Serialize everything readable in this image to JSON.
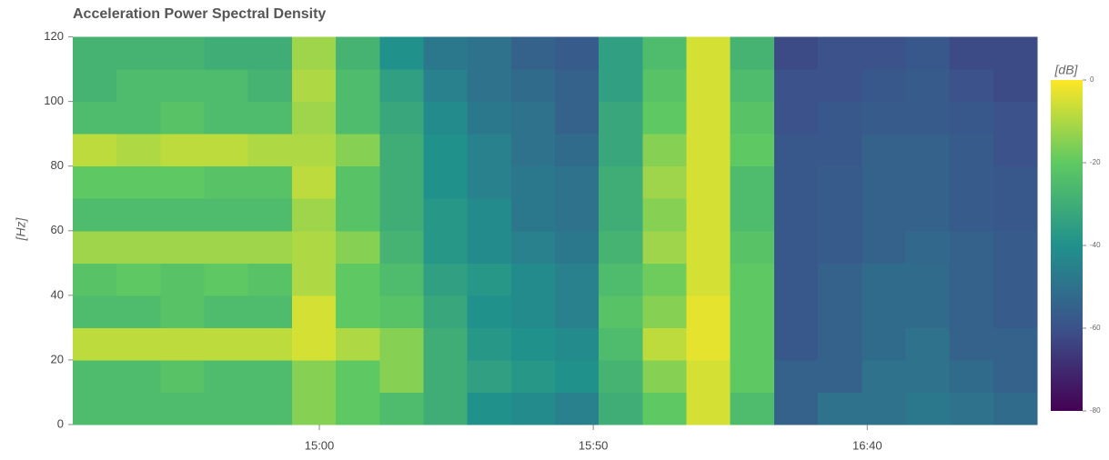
{
  "chart_data": {
    "type": "heatmap",
    "title": "Acceleration Power Spectral Density",
    "y_label": "[Hz]",
    "colorbar_label": "[dB]",
    "x": [
      859,
      867,
      875,
      883,
      891,
      899,
      907,
      915,
      923,
      931,
      939,
      947,
      955,
      963,
      971,
      979,
      987,
      995,
      1003,
      1011,
      1019,
      1027
    ],
    "y": [
      5,
      15,
      25,
      35,
      45,
      55,
      65,
      75,
      85,
      95,
      105,
      115
    ],
    "z": [
      [
        -25,
        -25,
        -25,
        -25,
        -25,
        -15,
        -20,
        -25,
        -30,
        -40,
        -42,
        -45,
        -30,
        -20,
        -5,
        -25,
        -55,
        -50,
        -50,
        -48,
        -50,
        -52
      ],
      [
        -25,
        -25,
        -22,
        -25,
        -25,
        -15,
        -20,
        -15,
        -30,
        -35,
        -38,
        -40,
        -28,
        -15,
        -5,
        -20,
        -55,
        -55,
        -50,
        -50,
        -52,
        -55
      ],
      [
        -8,
        -8,
        -8,
        -8,
        -8,
        -5,
        -10,
        -15,
        -30,
        -38,
        -40,
        -42,
        -25,
        -8,
        -3,
        -20,
        -58,
        -55,
        -52,
        -50,
        -55,
        -55
      ],
      [
        -25,
        -25,
        -22,
        -25,
        -25,
        -5,
        -20,
        -22,
        -32,
        -40,
        -42,
        -45,
        -22,
        -15,
        -3,
        -20,
        -58,
        -55,
        -52,
        -52,
        -55,
        -57
      ],
      [
        -22,
        -20,
        -22,
        -20,
        -22,
        -10,
        -20,
        -25,
        -35,
        -38,
        -42,
        -45,
        -25,
        -18,
        -5,
        -20,
        -58,
        -55,
        -52,
        -52,
        -55,
        -57
      ],
      [
        -12,
        -12,
        -12,
        -12,
        -12,
        -10,
        -15,
        -28,
        -38,
        -42,
        -45,
        -48,
        -28,
        -12,
        -5,
        -22,
        -58,
        -57,
        -55,
        -53,
        -55,
        -57
      ],
      [
        -25,
        -25,
        -25,
        -25,
        -25,
        -12,
        -22,
        -30,
        -38,
        -42,
        -48,
        -50,
        -30,
        -15,
        -5,
        -25,
        -58,
        -57,
        -55,
        -55,
        -57,
        -58
      ],
      [
        -20,
        -20,
        -20,
        -22,
        -22,
        -8,
        -22,
        -30,
        -40,
        -45,
        -48,
        -50,
        -30,
        -12,
        -5,
        -25,
        -58,
        -57,
        -55,
        -55,
        -57,
        -58
      ],
      [
        -8,
        -10,
        -8,
        -8,
        -10,
        -10,
        -15,
        -30,
        -40,
        -45,
        -50,
        -52,
        -32,
        -15,
        -5,
        -20,
        -58,
        -58,
        -55,
        -55,
        -57,
        -60
      ],
      [
        -25,
        -25,
        -22,
        -25,
        -25,
        -12,
        -25,
        -32,
        -42,
        -48,
        -50,
        -55,
        -32,
        -20,
        -5,
        -22,
        -60,
        -58,
        -57,
        -57,
        -58,
        -60
      ],
      [
        -28,
        -25,
        -25,
        -25,
        -28,
        -10,
        -25,
        -35,
        -45,
        -50,
        -52,
        -55,
        -35,
        -22,
        -5,
        -25,
        -60,
        -60,
        -58,
        -57,
        -60,
        -62
      ],
      [
        -28,
        -28,
        -28,
        -30,
        -30,
        -12,
        -28,
        -40,
        -48,
        -50,
        -55,
        -57,
        -35,
        -25,
        -5,
        -28,
        -62,
        -60,
        -60,
        -58,
        -62,
        -62
      ]
    ],
    "xlim": [
      855,
      1031
    ],
    "xticks": [
      {
        "value": 900,
        "label": "15:00"
      },
      {
        "value": 950,
        "label": "15:50"
      },
      {
        "value": 1000,
        "label": "16:40"
      }
    ],
    "ylim": [
      0,
      121
    ],
    "yticks": [
      0,
      20,
      40,
      60,
      80,
      100,
      120
    ],
    "clim": [
      -80,
      0
    ],
    "cticks": [
      0,
      -20,
      -40,
      -60,
      -80
    ],
    "colormap": [
      "#440154",
      "#3b528b",
      "#21918c",
      "#5ec962",
      "#fde725"
    ]
  }
}
